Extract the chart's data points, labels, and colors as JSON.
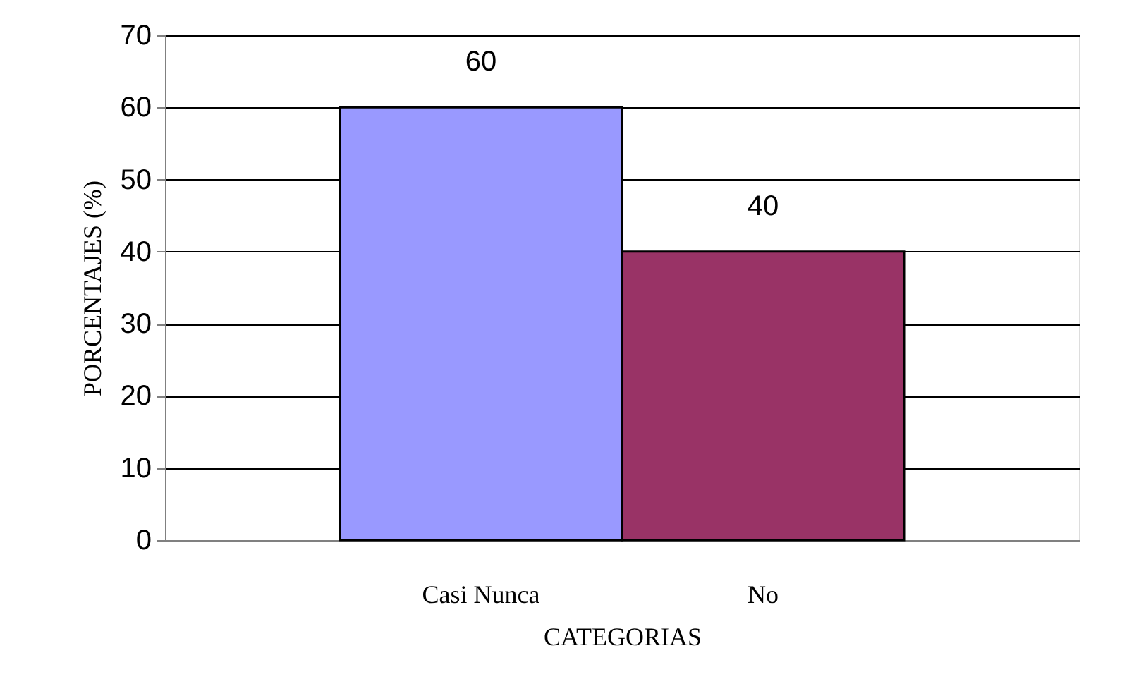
{
  "chart_data": {
    "type": "bar",
    "xlabel": "CATEGORIAS",
    "ylabel": "PORCENTAJES (%)",
    "categories": [
      "Casi Nunca",
      "No"
    ],
    "values": [
      60,
      40
    ],
    "colors": [
      "#9999ff",
      "#993366"
    ],
    "ylim": [
      0,
      70
    ],
    "yticks": [
      0,
      10,
      20,
      30,
      40,
      50,
      60,
      70
    ],
    "grid": "y",
    "data_labels": true
  }
}
